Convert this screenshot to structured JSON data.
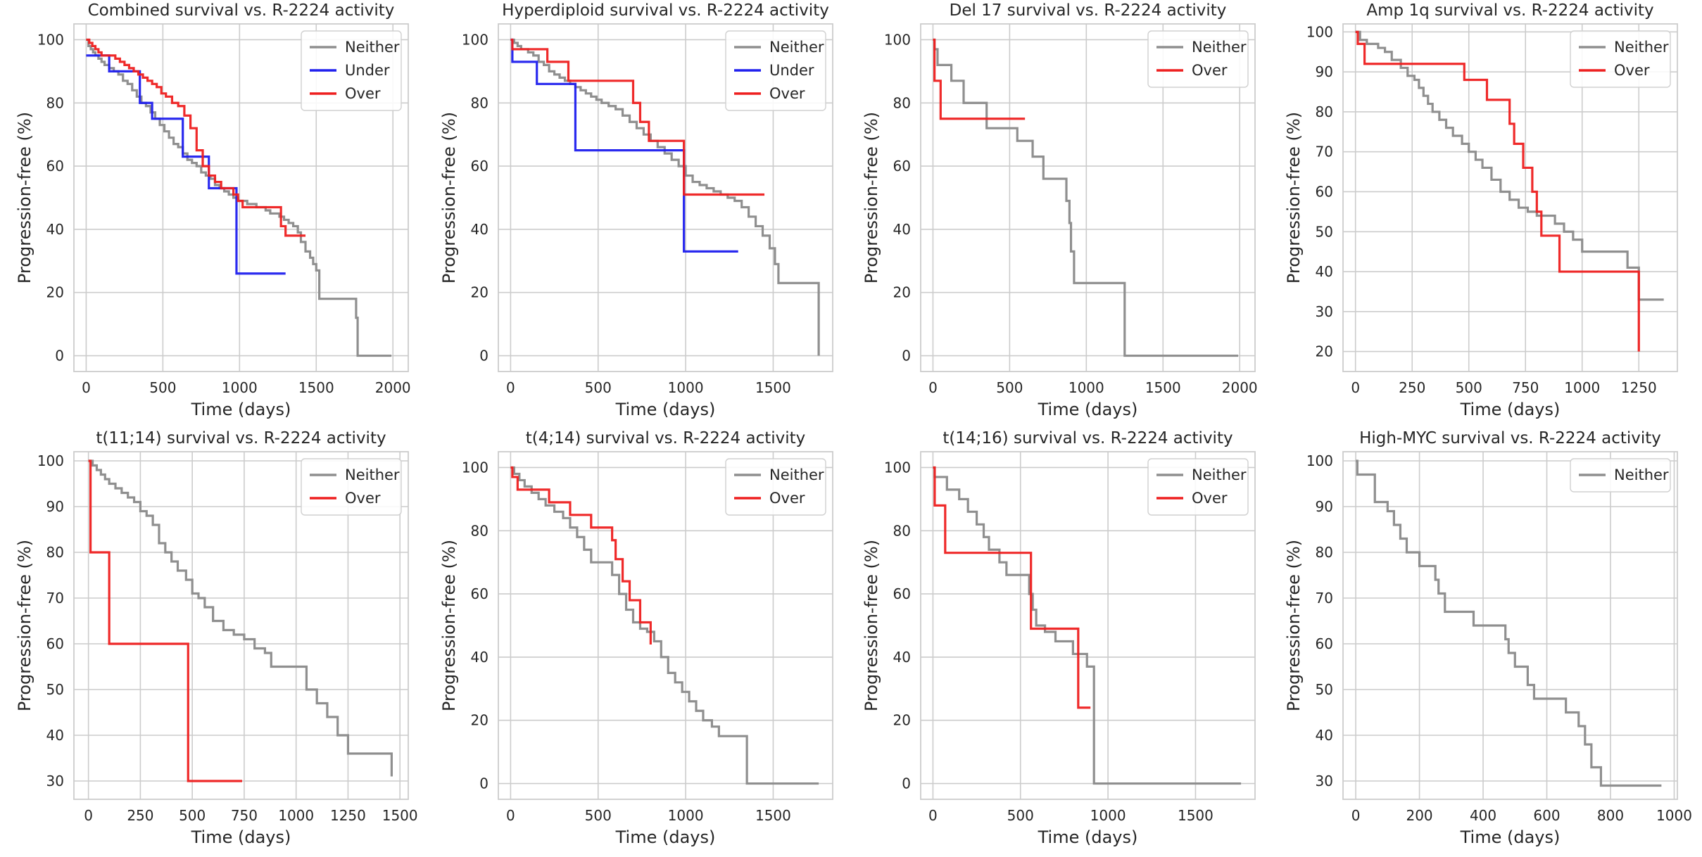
{
  "colors": {
    "Neither": "#8f8f8f",
    "Under": "#1f1fee",
    "Over": "#ee1f1f"
  },
  "chart_data": [
    {
      "type": "line",
      "title": "Combined survival vs. R-2224 activity",
      "xlabel": "Time (days)",
      "ylabel": "Progression-free (%)",
      "xlim": [
        -80,
        2100
      ],
      "ylim": [
        -5,
        105
      ],
      "xticks": [
        0,
        500,
        1000,
        1500,
        2000
      ],
      "yticks": [
        0,
        20,
        40,
        60,
        80,
        100
      ],
      "grid": true,
      "legend": "top-right",
      "series": [
        {
          "name": "Neither",
          "x": [
            0,
            15,
            30,
            45,
            60,
            80,
            100,
            120,
            150,
            180,
            210,
            240,
            270,
            300,
            330,
            360,
            390,
            420,
            450,
            480,
            510,
            540,
            570,
            600,
            630,
            660,
            690,
            720,
            750,
            780,
            810,
            840,
            870,
            900,
            930,
            960,
            990,
            1020,
            1050,
            1080,
            1110,
            1140,
            1170,
            1200,
            1230,
            1260,
            1290,
            1320,
            1350,
            1380,
            1400,
            1430,
            1460,
            1480,
            1500,
            1520,
            1560,
            1760,
            1770,
            1790,
            1990
          ],
          "y": [
            100,
            98,
            97,
            96,
            95,
            94,
            93,
            92,
            91,
            90,
            89,
            87,
            86,
            84,
            82,
            80,
            79,
            77,
            75,
            73,
            71,
            69,
            67,
            66,
            64,
            62,
            61,
            60,
            58,
            57,
            56,
            54,
            53,
            52,
            51,
            50,
            49,
            49,
            48,
            48,
            47,
            47,
            46,
            45,
            45,
            44,
            43,
            42,
            41,
            39,
            36,
            33,
            31,
            29,
            27,
            18,
            18,
            12,
            0,
            0,
            0
          ]
        },
        {
          "name": "Under",
          "x": [
            0,
            150,
            350,
            430,
            630,
            800,
            980,
            1300
          ],
          "y": [
            95,
            90,
            80,
            75,
            63,
            53,
            26,
            26
          ]
        },
        {
          "name": "Over",
          "x": [
            0,
            20,
            40,
            60,
            80,
            100,
            130,
            160,
            190,
            220,
            250,
            280,
            310,
            340,
            370,
            400,
            430,
            460,
            490,
            520,
            560,
            600,
            640,
            680,
            720,
            760,
            800,
            840,
            880,
            920,
            960,
            990,
            1020,
            1270,
            1300,
            1430
          ],
          "y": [
            100,
            99,
            98,
            97,
            96,
            95,
            95,
            95,
            94,
            93,
            92,
            91,
            90,
            89,
            88,
            87,
            86,
            85,
            83,
            82,
            80,
            79,
            76,
            72,
            65,
            60,
            57,
            55,
            53,
            53,
            51,
            49,
            47,
            41,
            38,
            38
          ]
        }
      ]
    },
    {
      "type": "line",
      "title": "Hyperdiploid survival vs. R-2224 activity",
      "xlabel": "Time (days)",
      "ylabel": "Progression-free (%)",
      "xlim": [
        -70,
        1840
      ],
      "ylim": [
        -5,
        105
      ],
      "xticks": [
        0,
        500,
        1000,
        1500
      ],
      "yticks": [
        0,
        20,
        40,
        60,
        80,
        100
      ],
      "grid": true,
      "legend": "top-right",
      "series": [
        {
          "name": "Neither",
          "x": [
            0,
            20,
            40,
            60,
            80,
            100,
            130,
            160,
            190,
            220,
            250,
            280,
            310,
            340,
            370,
            400,
            430,
            460,
            490,
            520,
            560,
            600,
            640,
            680,
            720,
            760,
            800,
            840,
            880,
            920,
            960,
            1000,
            1040,
            1080,
            1120,
            1160,
            1200,
            1240,
            1280,
            1320,
            1360,
            1400,
            1440,
            1480,
            1510,
            1530,
            1760
          ],
          "y": [
            100,
            99,
            98,
            97,
            97,
            96,
            95,
            93,
            92,
            90,
            89,
            88,
            87,
            86,
            85,
            84,
            83,
            82,
            81,
            80,
            79,
            78,
            76,
            74,
            72,
            70,
            68,
            66,
            64,
            62,
            60,
            57,
            55,
            54,
            53,
            52,
            51,
            50,
            49,
            47,
            44,
            41,
            38,
            34,
            29,
            23,
            0
          ]
        },
        {
          "name": "Under",
          "x": [
            0,
            10,
            150,
            370,
            990,
            1300
          ],
          "y": [
            100,
            93,
            86,
            65,
            33,
            33
          ]
        },
        {
          "name": "Over",
          "x": [
            0,
            10,
            210,
            330,
            610,
            700,
            740,
            790,
            990,
            1450
          ],
          "y": [
            100,
            97,
            93,
            87,
            87,
            80,
            74,
            68,
            51,
            51
          ]
        }
      ]
    },
    {
      "type": "line",
      "title": "Del 17 survival vs. R-2224 activity",
      "xlabel": "Time (days)",
      "ylabel": "Progression-free (%)",
      "xlim": [
        -80,
        2100
      ],
      "ylim": [
        -5,
        105
      ],
      "xticks": [
        0,
        500,
        1000,
        1500,
        2000
      ],
      "yticks": [
        0,
        20,
        40,
        60,
        80,
        100
      ],
      "grid": true,
      "legend": "top-right",
      "series": [
        {
          "name": "Neither",
          "x": [
            0,
            10,
            30,
            120,
            200,
            350,
            550,
            650,
            720,
            870,
            890,
            900,
            920,
            1250,
            1990
          ],
          "y": [
            100,
            97,
            92,
            87,
            80,
            72,
            68,
            63,
            56,
            49,
            42,
            33,
            23,
            0,
            0
          ]
        },
        {
          "name": "Over",
          "x": [
            0,
            10,
            50,
            600
          ],
          "y": [
            100,
            87,
            75,
            75
          ]
        }
      ]
    },
    {
      "type": "line",
      "title": "Amp 1q survival vs. R-2224 activity",
      "xlabel": "Time (days)",
      "ylabel": "Progression-free (%)",
      "xlim": [
        -55,
        1420
      ],
      "ylim": [
        15,
        102
      ],
      "xticks": [
        0,
        250,
        500,
        750,
        1000,
        1250
      ],
      "yticks": [
        20,
        30,
        40,
        50,
        60,
        70,
        80,
        90,
        100
      ],
      "grid": true,
      "legend": "top-right",
      "series": [
        {
          "name": "Neither",
          "x": [
            0,
            20,
            50,
            100,
            130,
            160,
            200,
            230,
            260,
            280,
            300,
            320,
            340,
            370,
            400,
            430,
            470,
            500,
            530,
            560,
            600,
            640,
            680,
            720,
            760,
            800,
            840,
            880,
            920,
            960,
            1000,
            1050,
            1100,
            1150,
            1200,
            1250,
            1360
          ],
          "y": [
            100,
            98,
            97,
            96,
            95,
            93,
            91,
            89,
            88,
            86,
            84,
            82,
            80,
            78,
            76,
            74,
            72,
            70,
            68,
            66,
            63,
            60,
            58,
            56,
            55,
            54,
            54,
            52,
            50,
            48,
            45,
            45,
            45,
            45,
            41,
            33,
            33
          ]
        },
        {
          "name": "Over",
          "x": [
            0,
            10,
            40,
            450,
            480,
            580,
            680,
            700,
            740,
            780,
            800,
            820,
            900,
            1250
          ],
          "y": [
            100,
            97,
            92,
            92,
            88,
            83,
            77,
            72,
            66,
            60,
            55,
            49,
            40,
            20
          ]
        }
      ]
    },
    {
      "type": "line",
      "title": "t(11;14) survival vs. R-2224 activity",
      "xlabel": "Time (days)",
      "ylabel": "Progression-free (%)",
      "xlim": [
        -70,
        1540
      ],
      "ylim": [
        26,
        102
      ],
      "xticks": [
        0,
        250,
        500,
        750,
        1000,
        1250,
        1500
      ],
      "yticks": [
        30,
        40,
        50,
        60,
        70,
        80,
        90,
        100
      ],
      "grid": true,
      "legend": "top-right",
      "series": [
        {
          "name": "Neither",
          "x": [
            0,
            20,
            40,
            60,
            80,
            100,
            130,
            160,
            190,
            220,
            250,
            280,
            310,
            340,
            370,
            400,
            430,
            470,
            500,
            530,
            560,
            600,
            650,
            700,
            750,
            800,
            850,
            880,
            1050,
            1100,
            1150,
            1200,
            1250,
            1460
          ],
          "y": [
            100,
            99,
            98,
            97,
            96,
            95,
            94,
            93,
            92,
            91,
            89,
            88,
            86,
            82,
            80,
            78,
            76,
            74,
            71,
            70,
            68,
            65,
            63,
            62,
            61,
            59,
            58,
            55,
            50,
            47,
            44,
            40,
            36,
            31
          ]
        },
        {
          "name": "Over",
          "x": [
            0,
            10,
            100,
            480,
            740
          ],
          "y": [
            100,
            80,
            60,
            30,
            30
          ]
        }
      ]
    },
    {
      "type": "line",
      "title": "t(4;14) survival vs. R-2224 activity",
      "xlabel": "Time (days)",
      "ylabel": "Progression-free (%)",
      "xlim": [
        -70,
        1840
      ],
      "ylim": [
        -5,
        105
      ],
      "xticks": [
        0,
        500,
        1000,
        1500
      ],
      "yticks": [
        0,
        20,
        40,
        60,
        80,
        100
      ],
      "grid": true,
      "legend": "top-right",
      "series": [
        {
          "name": "Neither",
          "x": [
            0,
            20,
            50,
            80,
            120,
            160,
            200,
            250,
            300,
            340,
            380,
            420,
            460,
            500,
            540,
            580,
            620,
            660,
            700,
            740,
            780,
            820,
            860,
            900,
            940,
            980,
            1020,
            1060,
            1100,
            1150,
            1190,
            1350,
            1760
          ],
          "y": [
            100,
            98,
            96,
            94,
            92,
            90,
            88,
            86,
            84,
            81,
            78,
            74,
            70,
            70,
            70,
            66,
            60,
            55,
            51,
            49,
            48,
            45,
            40,
            35,
            32,
            29,
            26,
            23,
            20,
            18,
            15,
            0,
            0
          ]
        },
        {
          "name": "Over",
          "x": [
            0,
            10,
            40,
            220,
            340,
            460,
            580,
            600,
            640,
            680,
            740,
            800
          ],
          "y": [
            100,
            97,
            93,
            89,
            85,
            81,
            77,
            71,
            64,
            58,
            51,
            44
          ]
        }
      ]
    },
    {
      "type": "line",
      "title": "t(14;16) survival vs. R-2224 activity",
      "xlabel": "Time (days)",
      "ylabel": "Progression-free (%)",
      "xlim": [
        -70,
        1840
      ],
      "ylim": [
        -5,
        105
      ],
      "xticks": [
        0,
        500,
        1000,
        1500
      ],
      "yticks": [
        0,
        20,
        40,
        60,
        80,
        100
      ],
      "grid": true,
      "legend": "top-right",
      "series": [
        {
          "name": "Neither",
          "x": [
            0,
            10,
            80,
            150,
            200,
            250,
            290,
            320,
            380,
            420,
            550,
            570,
            590,
            640,
            700,
            800,
            880,
            920,
            1760
          ],
          "y": [
            100,
            97,
            93,
            90,
            86,
            82,
            78,
            74,
            70,
            66,
            60,
            55,
            50,
            48,
            45,
            41,
            37,
            0,
            0
          ]
        },
        {
          "name": "Over",
          "x": [
            0,
            10,
            70,
            550,
            560,
            830,
            900
          ],
          "y": [
            100,
            88,
            73,
            73,
            49,
            24,
            24
          ]
        }
      ]
    },
    {
      "type": "line",
      "title": "High-MYC survival vs. R-2224 activity",
      "xlabel": "Time (days)",
      "ylabel": "Progression-free (%)",
      "xlim": [
        -40,
        1010
      ],
      "ylim": [
        26,
        102
      ],
      "xticks": [
        0,
        200,
        400,
        600,
        800,
        1000
      ],
      "yticks": [
        30,
        40,
        50,
        60,
        70,
        80,
        90,
        100
      ],
      "grid": true,
      "legend": "top-right",
      "series": [
        {
          "name": "Neither",
          "x": [
            0,
            5,
            60,
            100,
            120,
            140,
            160,
            200,
            250,
            260,
            280,
            370,
            470,
            480,
            500,
            540,
            560,
            660,
            700,
            720,
            740,
            770,
            960
          ],
          "y": [
            100,
            97,
            91,
            89,
            86,
            83,
            80,
            77,
            74,
            71,
            67,
            64,
            61,
            58,
            55,
            51,
            48,
            45,
            42,
            38,
            33,
            29,
            29
          ]
        }
      ]
    }
  ]
}
